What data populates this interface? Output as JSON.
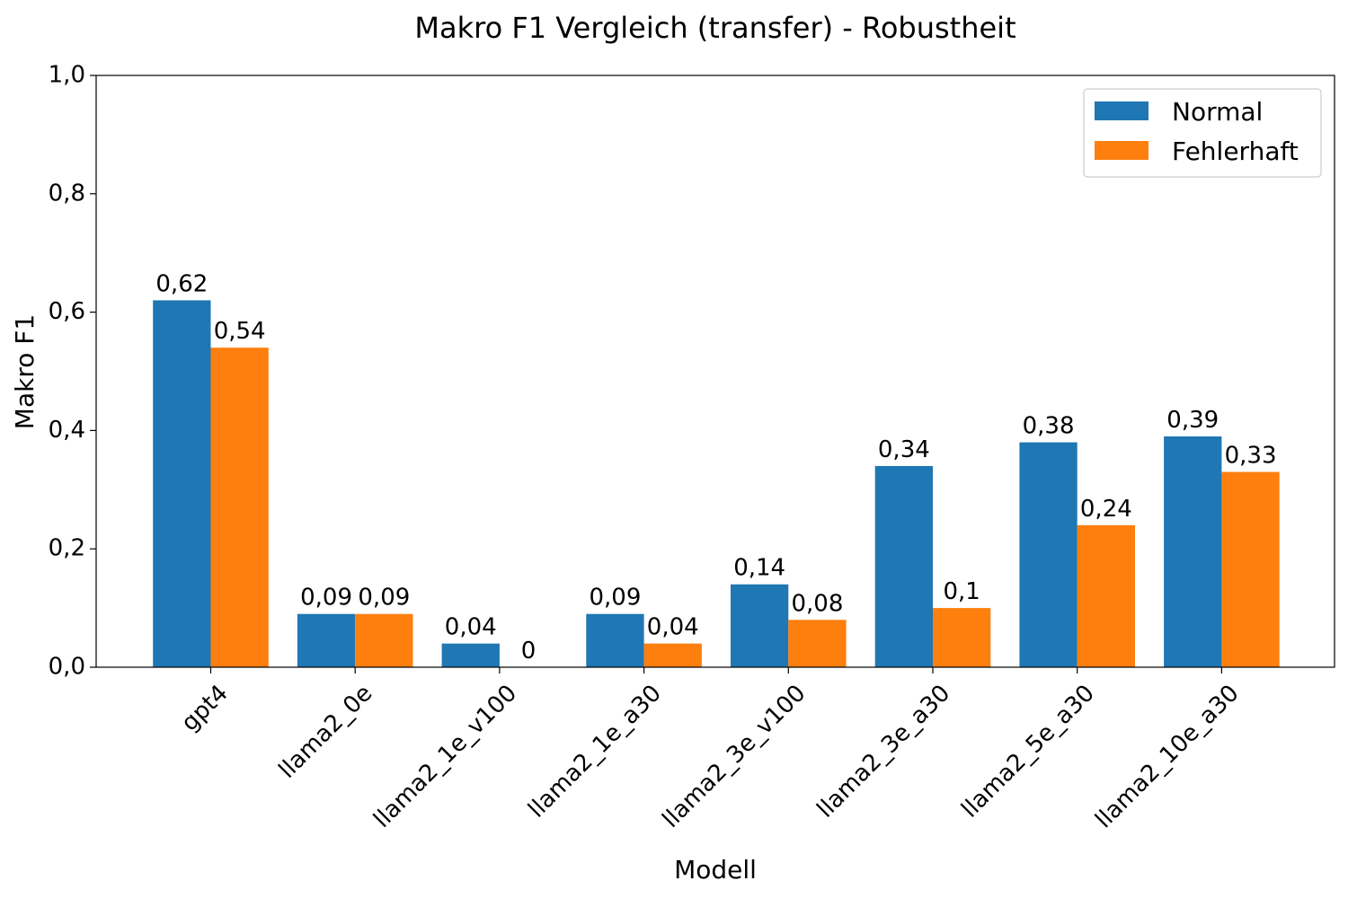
{
  "chart_data": {
    "type": "bar",
    "title": "Makro F1 Vergleich (transfer) - Robustheit",
    "xlabel": "Modell",
    "ylabel": "Makro F1",
    "ylim": [
      0,
      1.0
    ],
    "yticks": [
      "0,0",
      "0,2",
      "0,4",
      "0,6",
      "0,8",
      "1,0"
    ],
    "categories": [
      "gpt4",
      "llama2_0e",
      "llama2_1e_v100",
      "llama2_1e_a30",
      "llama2_3e_v100",
      "llama2_3e_a30",
      "llama2_5e_a30",
      "llama2_10e_a30"
    ],
    "series": [
      {
        "name": "Normal",
        "color": "#1f77b4",
        "values": [
          0.62,
          0.09,
          0.04,
          0.09,
          0.14,
          0.34,
          0.38,
          0.39
        ],
        "labels": [
          "0,62",
          "0,09",
          "0,04",
          "0,09",
          "0,14",
          "0,34",
          "0,38",
          "0,39"
        ]
      },
      {
        "name": "Fehlerhaft",
        "color": "#ff7f0e",
        "values": [
          0.54,
          0.09,
          0.0,
          0.04,
          0.08,
          0.1,
          0.24,
          0.33
        ],
        "labels": [
          "0,54",
          "0,09",
          "0",
          "0,04",
          "0,08",
          "0,1",
          "0,24",
          "0,33"
        ]
      }
    ],
    "grid": false,
    "legend": "top-right"
  }
}
